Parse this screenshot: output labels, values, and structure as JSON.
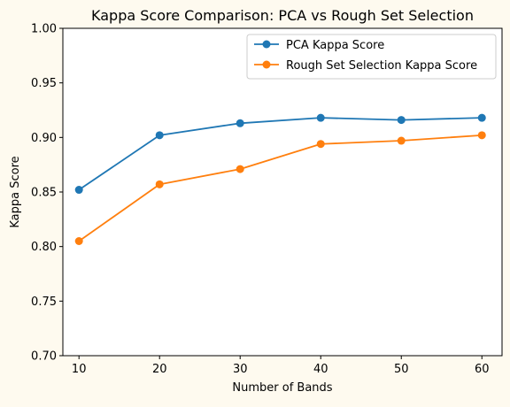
{
  "chart_data": {
    "type": "line",
    "title": "Kappa Score Comparison: PCA vs Rough Set Selection",
    "xlabel": "Number of Bands",
    "ylabel": "Kappa Score",
    "x": [
      10,
      20,
      30,
      40,
      50,
      60
    ],
    "xlim": [
      8,
      62.5
    ],
    "ylim": [
      0.7,
      1.0
    ],
    "x_ticks": [
      "10",
      "20",
      "30",
      "40",
      "50",
      "60"
    ],
    "y_ticks": [
      "0.70",
      "0.75",
      "0.80",
      "0.85",
      "0.90",
      "0.95",
      "1.00"
    ],
    "grid": false,
    "legend_position": "upper-right",
    "series": [
      {
        "name": "PCA Kappa Score",
        "color": "#1f77b4",
        "values": [
          0.852,
          0.902,
          0.913,
          0.918,
          0.916,
          0.918
        ]
      },
      {
        "name": "Rough Set Selection Kappa Score",
        "color": "#ff7f0e",
        "values": [
          0.805,
          0.857,
          0.871,
          0.894,
          0.897,
          0.902
        ]
      }
    ]
  }
}
